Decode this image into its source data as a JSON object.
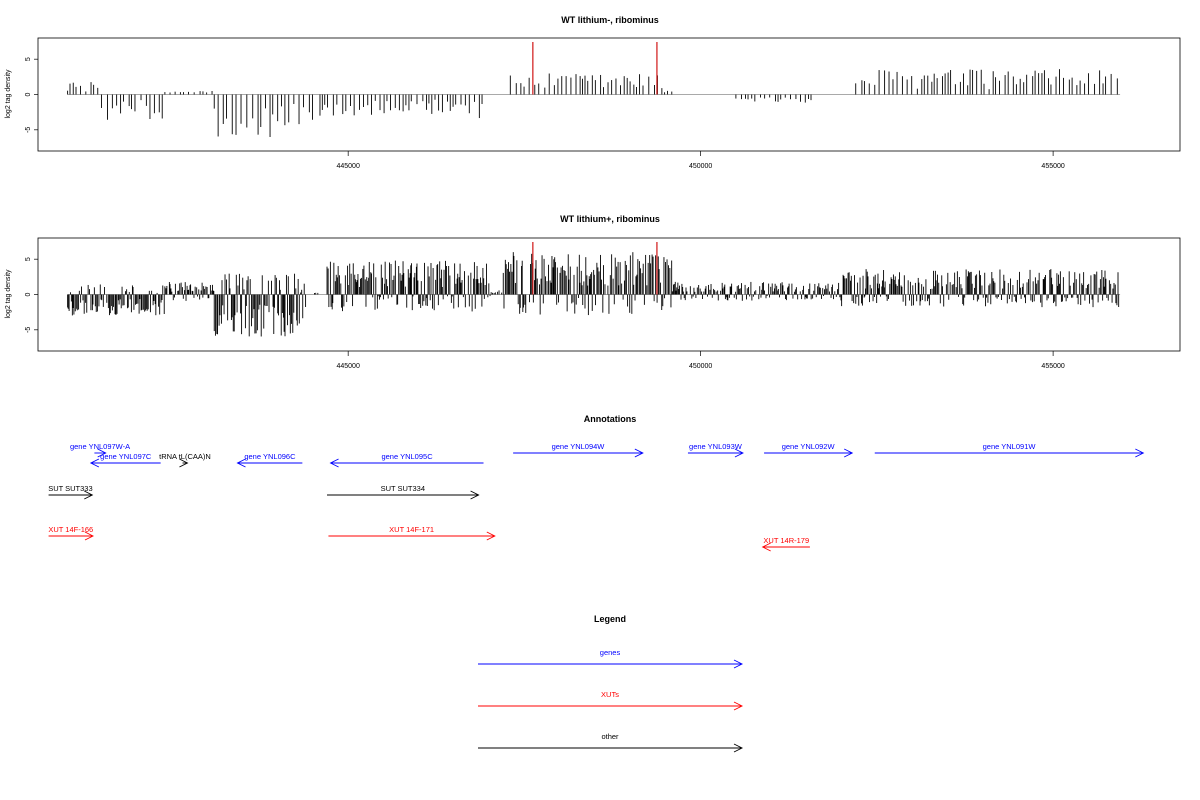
{
  "chart_data": [
    {
      "type": "bar",
      "title": "WT lithium-, ribominus",
      "ylabel": "log2 tag density",
      "x_ticks": [
        445000,
        450000,
        455000
      ],
      "y_ticks": [
        -5,
        0,
        5
      ],
      "xlim": [
        440600,
        456800
      ],
      "ylim": [
        -8,
        8
      ],
      "grid": false,
      "highlight_positions": [
        447620,
        449380
      ],
      "highlight_color": "#cc0000",
      "segments": [
        {
          "start": 441020,
          "end": 441080,
          "level": 2.0
        },
        {
          "start": 441100,
          "end": 441500,
          "level": 1.5
        },
        {
          "start": 441500,
          "end": 442400,
          "level": -3.0
        },
        {
          "start": 442400,
          "end": 443100,
          "level": 0.5
        },
        {
          "start": 443100,
          "end": 444000,
          "level": -5.5
        },
        {
          "start": 444000,
          "end": 444500,
          "level": -4.0
        },
        {
          "start": 444600,
          "end": 445600,
          "level": -2.5
        },
        {
          "start": 445600,
          "end": 446900,
          "level": -2.8
        },
        {
          "start": 447300,
          "end": 449450,
          "level": 2.5
        },
        {
          "start": 449450,
          "end": 449600,
          "level": 0.8
        },
        {
          "start": 450500,
          "end": 451600,
          "level": -1.0
        },
        {
          "start": 452200,
          "end": 455950,
          "level": 3.0
        }
      ]
    },
    {
      "type": "bar",
      "title": "WT lithium+, ribominus",
      "ylabel": "log2 tag density",
      "x_ticks": [
        445000,
        450000,
        455000
      ],
      "y_ticks": [
        -5,
        0,
        5
      ],
      "xlim": [
        440600,
        456800
      ],
      "ylim": [
        -8,
        8
      ],
      "grid": false,
      "highlight_positions": [
        447620,
        449380
      ],
      "highlight_color": "#cc0000",
      "segments": [
        {
          "start": 441020,
          "end": 442400,
          "level": -2.5
        },
        {
          "start": 442400,
          "end": 443100,
          "level": 1.5
        },
        {
          "start": 443100,
          "end": 444400,
          "level": -5.0
        },
        {
          "start": 444400,
          "end": 444600,
          "level": 0.3
        },
        {
          "start": 444700,
          "end": 447000,
          "level": 4.0
        },
        {
          "start": 447000,
          "end": 447200,
          "level": 0.5
        },
        {
          "start": 447200,
          "end": 449600,
          "level": 5.0
        },
        {
          "start": 449600,
          "end": 452000,
          "level": 1.5
        },
        {
          "start": 452000,
          "end": 455950,
          "level": 3.0
        }
      ]
    }
  ],
  "annotations": {
    "title": "Annotations",
    "features": [
      {
        "label": "gene YNL097W-A",
        "start": 441400,
        "end": 441560,
        "strand": "+",
        "row": 0,
        "category": "genes"
      },
      {
        "label": "gene YNL097C",
        "start": 441350,
        "end": 442340,
        "strand": "-",
        "row": 1,
        "category": "genes"
      },
      {
        "label": "tRNA tL(CAA)N",
        "start": 442650,
        "end": 442720,
        "strand": "+",
        "row": 1,
        "category": "other"
      },
      {
        "label": "gene YNL096C",
        "start": 443430,
        "end": 444350,
        "strand": "-",
        "row": 1,
        "category": "genes"
      },
      {
        "label": "gene YNL095C",
        "start": 444750,
        "end": 446920,
        "strand": "-",
        "row": 1,
        "category": "genes"
      },
      {
        "label": "gene YNL094W",
        "start": 447340,
        "end": 449180,
        "strand": "+",
        "row": 0,
        "category": "genes"
      },
      {
        "label": "gene YNL093W",
        "start": 449820,
        "end": 450600,
        "strand": "+",
        "row": 0,
        "category": "genes"
      },
      {
        "label": "gene YNL092W",
        "start": 450900,
        "end": 452150,
        "strand": "+",
        "row": 0,
        "category": "genes"
      },
      {
        "label": "gene YNL091W",
        "start": 452470,
        "end": 456280,
        "strand": "+",
        "row": 0,
        "category": "genes"
      },
      {
        "label": "SUT SUT333",
        "start": 440750,
        "end": 441370,
        "strand": "+",
        "row": 2,
        "category": "other"
      },
      {
        "label": "SUT SUT334",
        "start": 444700,
        "end": 446850,
        "strand": "+",
        "row": 2,
        "category": "other"
      },
      {
        "label": "XUT 14F-166",
        "start": 440750,
        "end": 441380,
        "strand": "+",
        "row": 3,
        "category": "XUTs"
      },
      {
        "label": "XUT 14F-171",
        "start": 444720,
        "end": 447080,
        "strand": "+",
        "row": 3,
        "category": "XUTs"
      },
      {
        "label": "XUT 14R-179",
        "start": 450880,
        "end": 451550,
        "strand": "-",
        "row": 4,
        "category": "XUTs"
      }
    ]
  },
  "legend": {
    "title": "Legend",
    "items": [
      {
        "label": "genes",
        "color": "#0000ff"
      },
      {
        "label": "XUTs",
        "color": "#ff0000"
      },
      {
        "label": "other",
        "color": "#000000"
      }
    ]
  },
  "colors": {
    "genes": "#0000ff",
    "XUTs": "#ff0000",
    "other": "#000000"
  }
}
